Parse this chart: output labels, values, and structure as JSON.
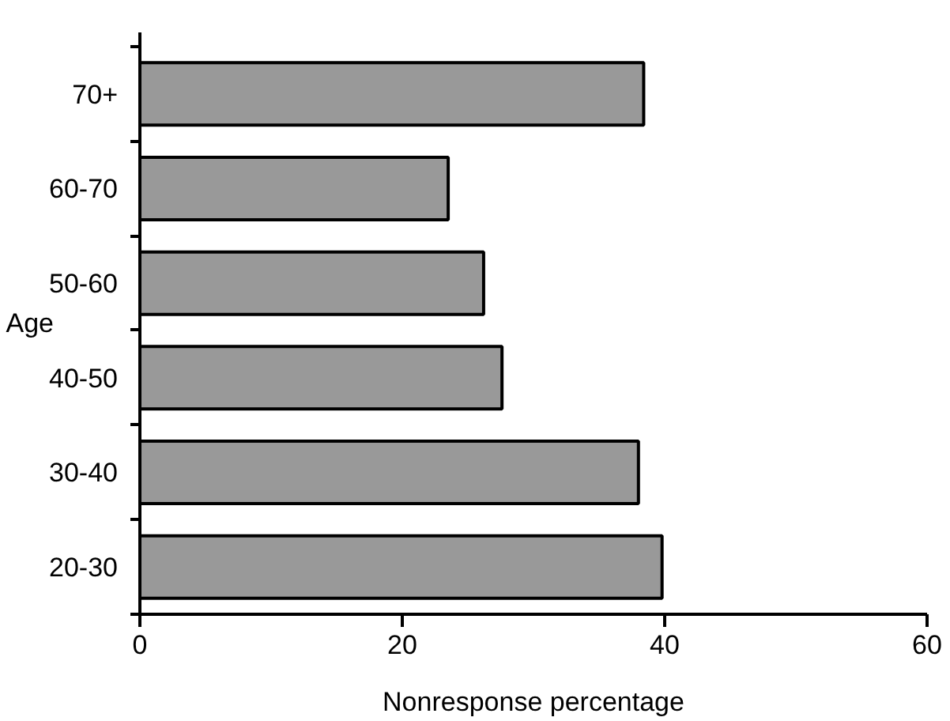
{
  "chart_data": {
    "type": "bar",
    "orientation": "horizontal",
    "xlabel": "Nonresponse percentage",
    "ylabel": "Age",
    "categories": [
      "70+",
      "60-70",
      "50-60",
      "40-50",
      "30-40",
      "20-30"
    ],
    "values": [
      38.4,
      23.5,
      26.2,
      27.6,
      38.0,
      39.8
    ],
    "color": "#999999",
    "xlim": [
      0,
      60
    ],
    "xticks": [
      0,
      20,
      40,
      60
    ],
    "grid": false
  }
}
